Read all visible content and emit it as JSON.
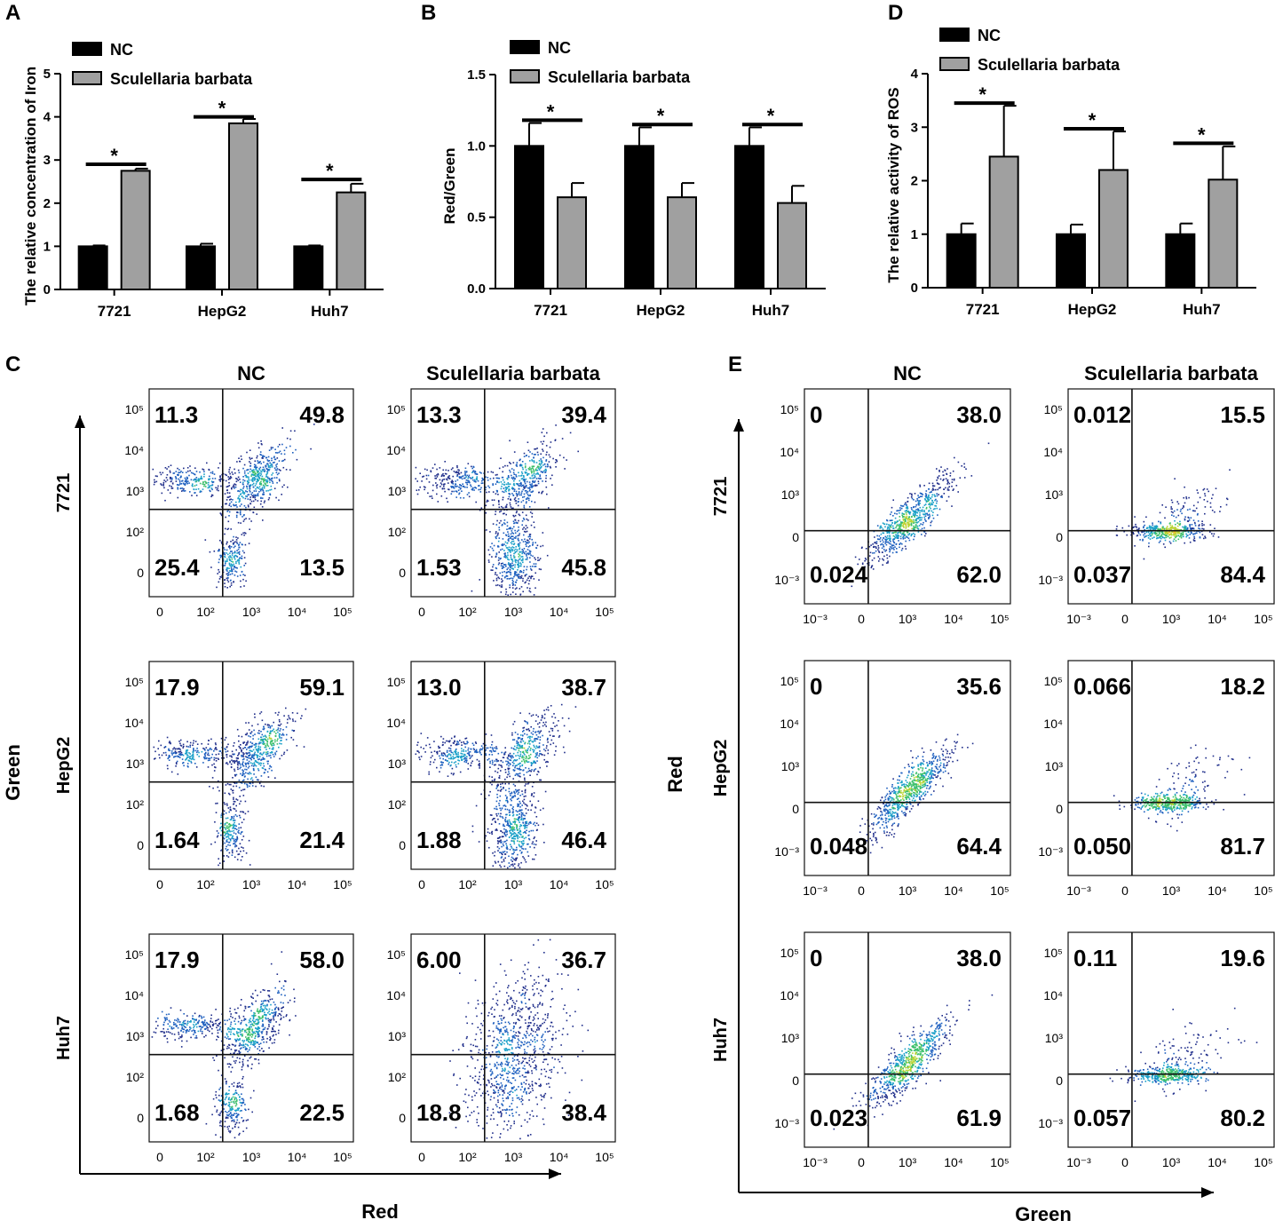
{
  "colors": {
    "nc": "#000000",
    "sb": "#a0a0a0",
    "axis": "#000000"
  },
  "chart_data": [
    {
      "panel": "A",
      "type": "bar",
      "ylabel": "The relative concentration of Iron",
      "categories": [
        "7721",
        "HepG2",
        "Huh7"
      ],
      "ylim": [
        0,
        5
      ],
      "yticks": [
        "0",
        "1",
        "2",
        "3",
        "4",
        "5"
      ],
      "ytick_values": [
        0,
        1,
        2,
        3,
        4,
        5
      ],
      "series": [
        {
          "name": "NC",
          "values": [
            1.0,
            1.0,
            1.0
          ],
          "errors": [
            0.02,
            0.06,
            0.02
          ]
        },
        {
          "name": "Sculellaria barbata",
          "values": [
            2.75,
            3.85,
            2.25
          ],
          "errors": [
            0.05,
            0.1,
            0.2
          ]
        }
      ],
      "significance": [
        "*",
        "*",
        "*"
      ],
      "sig_levels": [
        2.9,
        4.0,
        2.55
      ]
    },
    {
      "panel": "B",
      "type": "bar",
      "ylabel": "Red/Green",
      "categories": [
        "7721",
        "HepG2",
        "Huh7"
      ],
      "ylim": [
        0,
        1.5
      ],
      "yticks": [
        "0.0",
        "0.5",
        "1.0",
        "1.5"
      ],
      "ytick_values": [
        0,
        0.5,
        1.0,
        1.5
      ],
      "series": [
        {
          "name": "NC",
          "values": [
            1.0,
            1.0,
            1.0
          ],
          "errors": [
            0.16,
            0.13,
            0.13
          ]
        },
        {
          "name": "Sculellaria barbata",
          "values": [
            0.64,
            0.64,
            0.6
          ],
          "errors": [
            0.1,
            0.1,
            0.12
          ]
        }
      ],
      "significance": [
        "*",
        "*",
        "*"
      ],
      "sig_levels": [
        1.18,
        1.15,
        1.15
      ]
    },
    {
      "panel": "D",
      "type": "bar",
      "ylabel": "The relative activity of ROS",
      "categories": [
        "7721",
        "HepG2",
        "Huh7"
      ],
      "ylim": [
        0,
        4
      ],
      "yticks": [
        "0",
        "1",
        "2",
        "3",
        "4"
      ],
      "ytick_values": [
        0,
        1,
        2,
        3,
        4
      ],
      "series": [
        {
          "name": "NC",
          "values": [
            1.0,
            1.0,
            1.0
          ],
          "errors": [
            0.2,
            0.18,
            0.2
          ]
        },
        {
          "name": "Sculellaria barbata",
          "values": [
            2.45,
            2.2,
            2.02
          ],
          "errors": [
            0.95,
            0.72,
            0.62
          ]
        }
      ],
      "significance": [
        "*",
        "*",
        "*"
      ],
      "sig_levels": [
        3.45,
        2.97,
        2.7
      ]
    },
    {
      "panel": "C",
      "type": "scatter",
      "description": "flow cytometry quadrant plots",
      "column_headers": [
        "NC",
        "Sculellaria barbata"
      ],
      "row_headers": [
        "7721",
        "HepG2",
        "Huh7"
      ],
      "xlabel": "Red",
      "ylabel": "Green",
      "xticks": [
        "0",
        "10²",
        "10³",
        "10⁴",
        "10⁵"
      ],
      "yticks": [
        "10⁵",
        "10⁴",
        "10³",
        "10²",
        "0"
      ],
      "quadrants": [
        [
          [
            "11.3",
            "49.8",
            "25.4",
            "13.5"
          ],
          [
            "13.3",
            "39.4",
            "1.53",
            "45.8"
          ]
        ],
        [
          [
            "17.9",
            "59.1",
            "1.64",
            "21.4"
          ],
          [
            "13.0",
            "38.7",
            "1.88",
            "46.4"
          ]
        ],
        [
          [
            "17.9",
            "58.0",
            "1.68",
            "22.5"
          ],
          [
            "6.00",
            "36.7",
            "18.8",
            "38.4"
          ]
        ]
      ]
    },
    {
      "panel": "E",
      "type": "scatter",
      "description": "flow cytometry quadrant plots",
      "column_headers": [
        "NC",
        "Sculellaria barbata"
      ],
      "row_headers": [
        "7721",
        "HepG2",
        "Huh7"
      ],
      "xlabel": "Green",
      "ylabel": "Red",
      "xticks": [
        "10⁻³",
        "0",
        "10³",
        "10⁴",
        "10⁵"
      ],
      "yticks": [
        "10⁵",
        "10⁴",
        "10³",
        "0",
        "10⁻³"
      ],
      "quadrants": [
        [
          [
            "0",
            "38.0",
            "0.024",
            "62.0"
          ],
          [
            "0.012",
            "15.5",
            "0.037",
            "84.4"
          ]
        ],
        [
          [
            "0",
            "35.6",
            "0.048",
            "64.4"
          ],
          [
            "0.066",
            "18.2",
            "0.050",
            "81.7"
          ]
        ],
        [
          [
            "0",
            "38.0",
            "0.023",
            "61.9"
          ],
          [
            "0.11",
            "19.6",
            "0.057",
            "80.2"
          ]
        ]
      ]
    }
  ]
}
